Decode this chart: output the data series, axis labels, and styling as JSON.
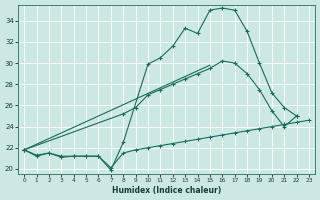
{
  "xlabel": "Humidex (Indice chaleur)",
  "bg_color": "#cce8e5",
  "grid_color": "#b8d8d5",
  "line_color": "#1a6b5a",
  "xlim": [
    -0.5,
    23.5
  ],
  "ylim": [
    19.5,
    35.5
  ],
  "yticks": [
    20,
    22,
    24,
    26,
    28,
    30,
    32,
    34
  ],
  "xticks": [
    0,
    1,
    2,
    3,
    4,
    5,
    6,
    7,
    8,
    9,
    10,
    11,
    12,
    13,
    14,
    15,
    16,
    17,
    18,
    19,
    20,
    21,
    22,
    23
  ],
  "curve_jagged": {
    "x": [
      0,
      1,
      2,
      3,
      4,
      5,
      6,
      7,
      8,
      10,
      11,
      12,
      13,
      14,
      15,
      16,
      17,
      18,
      19,
      20,
      21,
      22
    ],
    "y": [
      21.8,
      21.2,
      21.5,
      21.1,
      21.2,
      21.2,
      21.2,
      19.9,
      22.5,
      29.9,
      30.5,
      31.6,
      33.3,
      32.8,
      35.0,
      35.2,
      35.0,
      33.0,
      30.0,
      27.2,
      25.8,
      25.0
    ]
  },
  "curve_mid": {
    "x": [
      0,
      8,
      9,
      10,
      11,
      12,
      13,
      14,
      15,
      16,
      17,
      18,
      19,
      20,
      21,
      22
    ],
    "y": [
      21.8,
      25.2,
      25.8,
      27.0,
      27.5,
      28.0,
      28.5,
      29.0,
      29.5,
      30.2,
      30.0,
      29.0,
      27.5,
      25.5,
      24.0,
      25.0
    ]
  },
  "line_straight_top": {
    "x": [
      0,
      15
    ],
    "y": [
      21.8,
      29.8
    ]
  },
  "curve_bottom": {
    "x": [
      0,
      1,
      2,
      3,
      4,
      5,
      6,
      7,
      8,
      9,
      10,
      11,
      12,
      13,
      14,
      15,
      16,
      17,
      18,
      19,
      20,
      21,
      22,
      23
    ],
    "y": [
      21.8,
      21.3,
      21.5,
      21.2,
      21.2,
      21.2,
      21.2,
      20.1,
      21.5,
      21.8,
      22.0,
      22.2,
      22.4,
      22.6,
      22.8,
      23.0,
      23.2,
      23.4,
      23.6,
      23.8,
      24.0,
      24.2,
      24.4,
      24.6
    ]
  }
}
